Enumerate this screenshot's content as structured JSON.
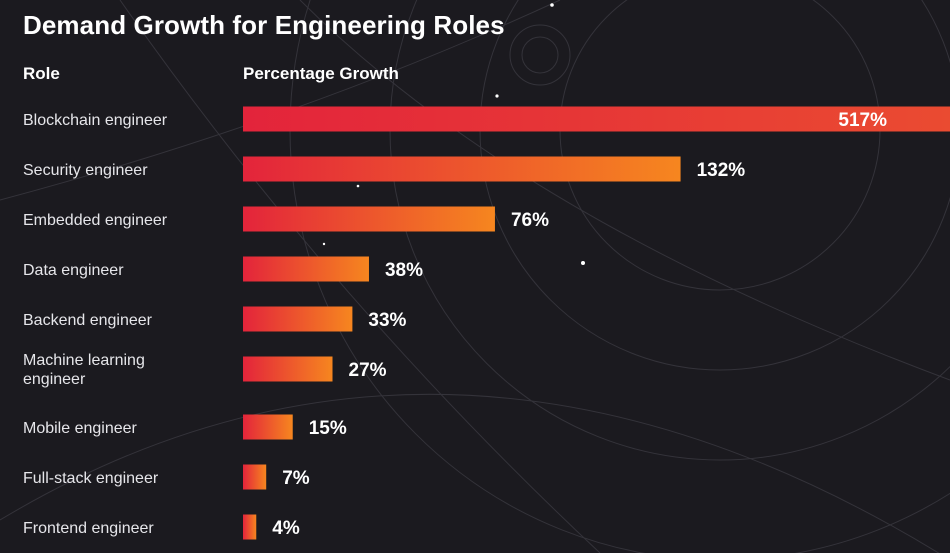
{
  "colors": {
    "background": "#1b1a1f",
    "bar_start": "#e3243b",
    "bar_end": "#f6861f",
    "text": "#ffffff",
    "decor_lines": "#3a3940"
  },
  "chart_data": {
    "type": "bar",
    "orientation": "horizontal",
    "title": "Demand Growth for Engineering Roles",
    "category_header": "Role",
    "value_header": "Percentage Growth",
    "categories": [
      "Blockchain engineer",
      "Security engineer",
      "Embedded engineer",
      "Data engineer",
      "Backend engineer",
      "Machine learning engineer",
      "Mobile engineer",
      "Full-stack engineer",
      "Frontend engineer"
    ],
    "category_display_lines": [
      [
        "Blockchain engineer"
      ],
      [
        "Security engineer"
      ],
      [
        "Embedded engineer"
      ],
      [
        "Data engineer"
      ],
      [
        "Backend engineer"
      ],
      [
        "Machine learning",
        "engineer"
      ],
      [
        "Mobile engineer"
      ],
      [
        "Full-stack engineer"
      ],
      [
        "Frontend engineer"
      ]
    ],
    "values": [
      517,
      132,
      76,
      38,
      33,
      27,
      15,
      7,
      4
    ],
    "value_labels": [
      "517%",
      "132%",
      "76%",
      "38%",
      "33%",
      "27%",
      "15%",
      "7%",
      "4%"
    ],
    "unit": "%",
    "grid": false,
    "legend": "none"
  }
}
